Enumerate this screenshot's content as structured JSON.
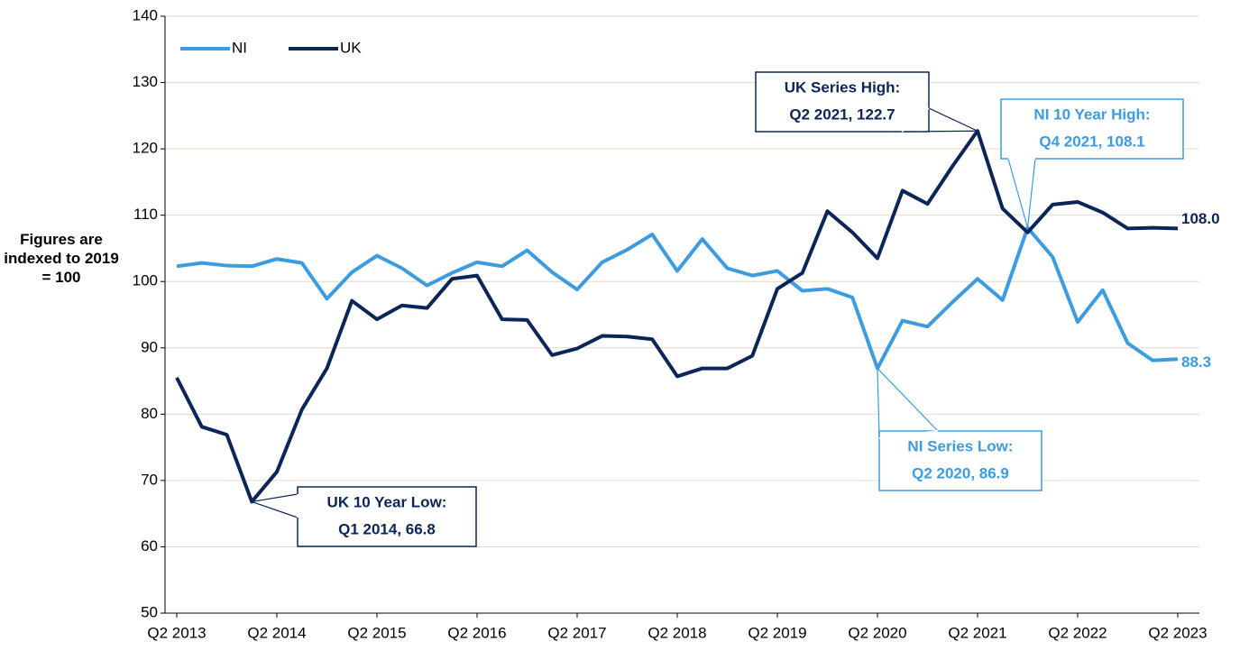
{
  "chart_data": {
    "type": "line",
    "y_label": "Figures are indexed to 2019 = 100",
    "categories": [
      "Q2 2013",
      null,
      null,
      null,
      "Q2 2014",
      null,
      null,
      null,
      "Q2 2015",
      null,
      null,
      null,
      "Q2 2016",
      null,
      null,
      null,
      "Q2 2017",
      null,
      null,
      null,
      "Q2 2018",
      null,
      null,
      null,
      "Q2 2019",
      null,
      null,
      null,
      "Q2 2020",
      null,
      null,
      null,
      "Q2 2021",
      null,
      null,
      null,
      "Q2 2022",
      null,
      null,
      null,
      "Q2 2023"
    ],
    "series": [
      {
        "name": "NI",
        "color": "#3d9be0",
        "values": [
          102.3,
          102.8,
          102.4,
          102.3,
          103.4,
          102.8,
          97.4,
          101.4,
          103.9,
          102.0,
          99.4,
          101.3,
          102.9,
          102.3,
          104.7,
          101.4,
          98.8,
          102.9,
          104.8,
          107.1,
          101.6,
          106.4,
          102.0,
          100.9,
          101.6,
          98.6,
          98.9,
          97.6,
          86.9,
          94.1,
          93.2,
          96.9,
          100.4,
          97.2,
          108.1,
          103.7,
          93.9,
          98.7,
          90.7,
          88.1,
          88.3
        ],
        "value_labels": [
          null,
          null,
          null,
          null,
          null,
          null,
          null,
          null,
          null,
          null,
          null,
          null,
          null,
          null,
          null,
          null,
          null,
          null,
          null,
          null,
          null,
          null,
          null,
          null,
          null,
          null,
          null,
          null,
          null,
          null,
          null,
          null,
          null,
          null,
          null,
          null,
          null,
          null,
          null,
          null,
          "88.3"
        ]
      },
      {
        "name": "UK",
        "color": "#0b2559",
        "values": [
          85.5,
          78.1,
          76.9,
          66.8,
          71.3,
          80.7,
          86.9,
          97.1,
          94.3,
          96.4,
          96.0,
          100.4,
          100.9,
          94.3,
          94.2,
          88.9,
          89.9,
          91.8,
          91.7,
          91.3,
          85.7,
          86.9,
          86.9,
          88.8,
          98.9,
          101.3,
          110.6,
          107.4,
          103.5,
          113.7,
          111.7,
          117.4,
          122.7,
          111.0,
          107.4,
          111.6,
          112.0,
          110.4,
          108.0,
          108.1,
          108.0
        ],
        "value_labels": [
          null,
          null,
          null,
          null,
          null,
          null,
          null,
          null,
          null,
          null,
          null,
          null,
          null,
          null,
          null,
          null,
          null,
          null,
          null,
          null,
          null,
          null,
          null,
          null,
          null,
          null,
          null,
          null,
          null,
          null,
          null,
          null,
          null,
          null,
          null,
          null,
          null,
          null,
          null,
          null,
          "108.0"
        ]
      }
    ],
    "annotations": [
      {
        "lines": [
          "UK 10 Year Low:",
          "Q1 2014, 66.8"
        ]
      },
      {
        "lines": [
          "UK Series High:",
          "Q2 2021, 122.7"
        ]
      },
      {
        "lines": [
          "NI 10 Year High:",
          "Q4 2021, 108.1"
        ]
      },
      {
        "lines": [
          "NI Series Low:",
          "Q2 2020, 86.9"
        ]
      }
    ],
    "ylim": [
      50,
      140
    ],
    "yticks": [
      50,
      60,
      70,
      80,
      90,
      100,
      110,
      120,
      130,
      140
    ],
    "grid": true,
    "legend": "top-left"
  }
}
